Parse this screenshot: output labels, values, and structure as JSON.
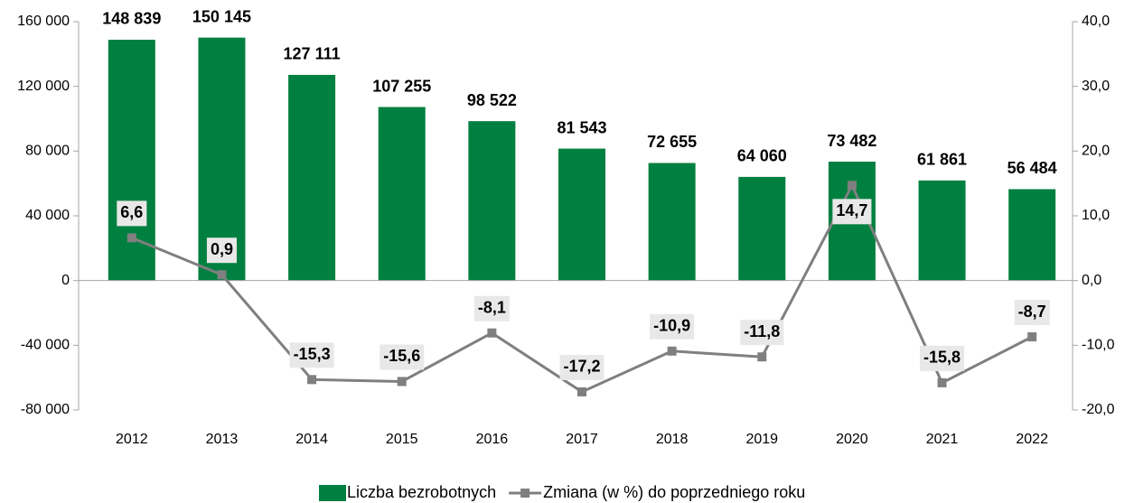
{
  "chart_data": {
    "type": "bar",
    "categories": [
      "2012",
      "2013",
      "2014",
      "2015",
      "2016",
      "2017",
      "2018",
      "2019",
      "2020",
      "2021",
      "2022"
    ],
    "series": [
      {
        "name": "Liczba bezrobotnych",
        "type": "bar",
        "color": "#008040",
        "values": [
          148839,
          150145,
          127111,
          107255,
          98522,
          81543,
          72655,
          64060,
          73482,
          61861,
          56484
        ],
        "value_labels": [
          "148 839",
          "150 145",
          "127 111",
          "107 255",
          "98 522",
          "81 543",
          "72 655",
          "64 060",
          "73 482",
          "61 861",
          "56 484"
        ]
      },
      {
        "name": "Zmiana (w %) do poprzedniego roku",
        "type": "line",
        "axis": "y2",
        "color": "#7f7f7f",
        "values": [
          6.6,
          0.9,
          -15.3,
          -15.6,
          -8.1,
          -17.2,
          -10.9,
          -11.8,
          14.7,
          -15.8,
          -8.7
        ],
        "value_labels": [
          "6,6",
          "0,9",
          "-15,3",
          "-15,6",
          "-8,1",
          "-17,2",
          "-10,9",
          "-11,8",
          "14,7",
          "-15,8",
          "-8,7"
        ]
      }
    ],
    "ylim": [
      -80000,
      160000
    ],
    "yticks": [
      {
        "value": -80000,
        "label": "-80 000"
      },
      {
        "value": -40000,
        "label": "-40 000"
      },
      0,
      {
        "value": 40000,
        "label": "40 000"
      },
      {
        "value": 80000,
        "label": "80 000"
      },
      {
        "value": 120000,
        "label": "120 000"
      },
      {
        "value": 160000,
        "label": "160 000"
      }
    ],
    "y2lim": [
      -20,
      40
    ],
    "y2ticks": [
      {
        "value": -20,
        "label": "-20,0"
      },
      {
        "value": -10,
        "label": "-10,0"
      },
      {
        "value": 0,
        "label": "0,0"
      },
      {
        "value": 10,
        "label": "10,0"
      },
      {
        "value": 20,
        "label": "20,0"
      },
      {
        "value": 30,
        "label": "30,0"
      },
      {
        "value": 40,
        "label": "40,0"
      }
    ],
    "grid": false,
    "legend": "bottom"
  }
}
